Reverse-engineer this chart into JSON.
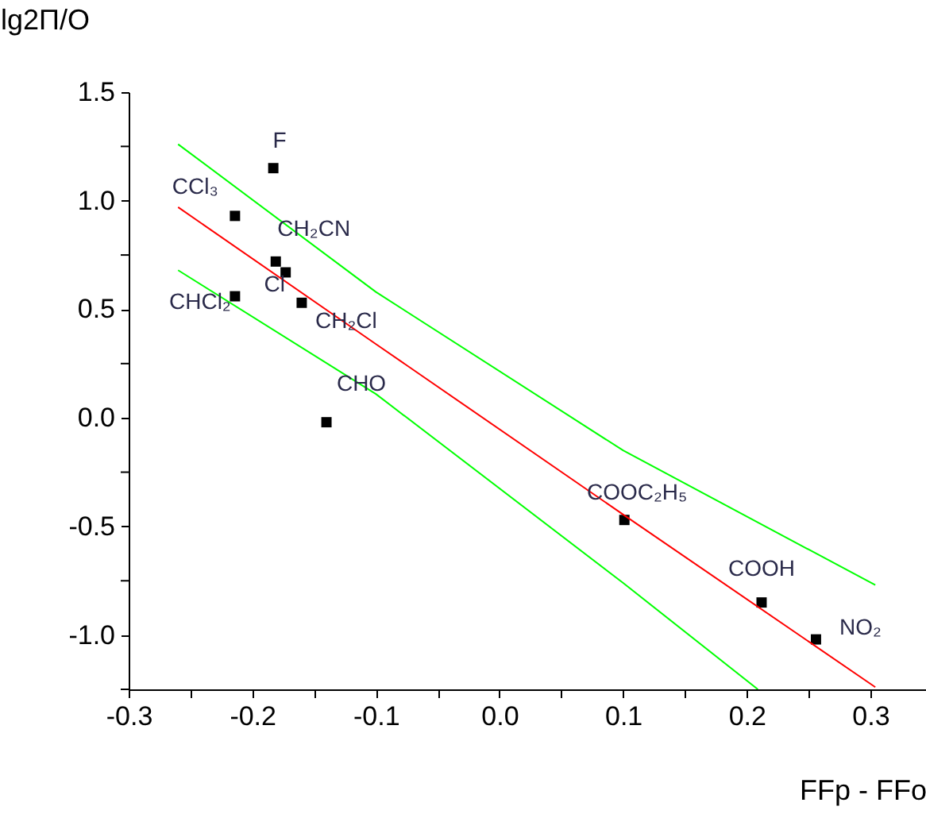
{
  "chart_data": {
    "type": "scatter",
    "xlabel": "FFp - FFo",
    "ylabel": "lg2П/О",
    "xlim": [
      -0.3,
      0.345
    ],
    "ylim": [
      -1.25,
      1.5
    ],
    "xticks": [
      {
        "value": -0.3,
        "label": "-0.3"
      },
      {
        "value": -0.25,
        "label": null
      },
      {
        "value": -0.2,
        "label": "-0.2"
      },
      {
        "value": -0.15,
        "label": null
      },
      {
        "value": -0.1,
        "label": "-0.1"
      },
      {
        "value": -0.05,
        "label": null
      },
      {
        "value": 0,
        "label": "0.0"
      },
      {
        "value": 0.05,
        "label": null
      },
      {
        "value": 0.1,
        "label": "0.1"
      },
      {
        "value": 0.15,
        "label": null
      },
      {
        "value": 0.2,
        "label": "0.2"
      },
      {
        "value": 0.25,
        "label": null
      },
      {
        "value": 0.3,
        "label": "0.3"
      }
    ],
    "yticks": [
      {
        "value": -1.25,
        "label": null
      },
      {
        "value": -1,
        "label": "-1.0"
      },
      {
        "value": -0.75,
        "label": null
      },
      {
        "value": -0.5,
        "label": "-0.5"
      },
      {
        "value": -0.25,
        "label": null
      },
      {
        "value": 0,
        "label": "0.0"
      },
      {
        "value": 0.25,
        "label": null
      },
      {
        "value": 0.5,
        "label": "0.5"
      },
      {
        "value": 0.75,
        "label": null
      },
      {
        "value": 1,
        "label": "1.0"
      },
      {
        "value": 1.25,
        "label": null
      },
      {
        "value": 1.5,
        "label": "1.5"
      }
    ],
    "grid": false,
    "series": [
      {
        "color": "#000000",
        "marker": "square",
        "x": [
          -0.183,
          -0.214,
          -0.181,
          -0.173,
          -0.214,
          -0.16,
          -0.14,
          0.101,
          0.212,
          0.256
        ],
        "values": [
          1.15,
          0.93,
          0.72,
          0.67,
          0.56,
          0.53,
          -0.02,
          -0.47,
          -0.85,
          -1.02
        ]
      },
      {
        "type": "line",
        "color": "#ff0000",
        "line_style": "solid",
        "x": [
          -0.26,
          -0.1,
          0.1,
          0.304
        ],
        "values": [
          0.97,
          0.34,
          -0.445,
          -1.24
        ]
      },
      {
        "type": "line",
        "color": "#00ff00",
        "line_style": "solid",
        "x": [
          -0.26,
          -0.1,
          0.1,
          0.304
        ],
        "values": [
          1.26,
          0.58,
          -0.15,
          -0.77
        ]
      },
      {
        "type": "line",
        "color": "#00ff00",
        "line_style": "solid",
        "x": [
          -0.26,
          -0.1,
          0.1,
          0.209
        ],
        "values": [
          0.68,
          0.11,
          -0.76,
          -1.25
        ]
      }
    ],
    "annotations": [
      {
        "text": "F",
        "x": -0.183,
        "y": 1.15
      },
      {
        "text": "CCl₃",
        "x": -0.214,
        "y": 0.93
      },
      {
        "text": "CH₂CN",
        "x": -0.181,
        "y": 0.72
      },
      {
        "text": "Cl",
        "x": -0.173,
        "y": 0.67
      },
      {
        "text": "CHCl₂",
        "x": -0.214,
        "y": 0.56
      },
      {
        "text": "CH₂Cl",
        "x": -0.16,
        "y": 0.53
      },
      {
        "text": "CHO",
        "x": -0.14,
        "y": -0.02
      },
      {
        "text": "COOC₂H₅",
        "x": 0.101,
        "y": -0.47
      },
      {
        "text": "COOH",
        "x": 0.212,
        "y": -0.85
      },
      {
        "text": "NO₂",
        "x": 0.256,
        "y": -1.02
      }
    ]
  }
}
